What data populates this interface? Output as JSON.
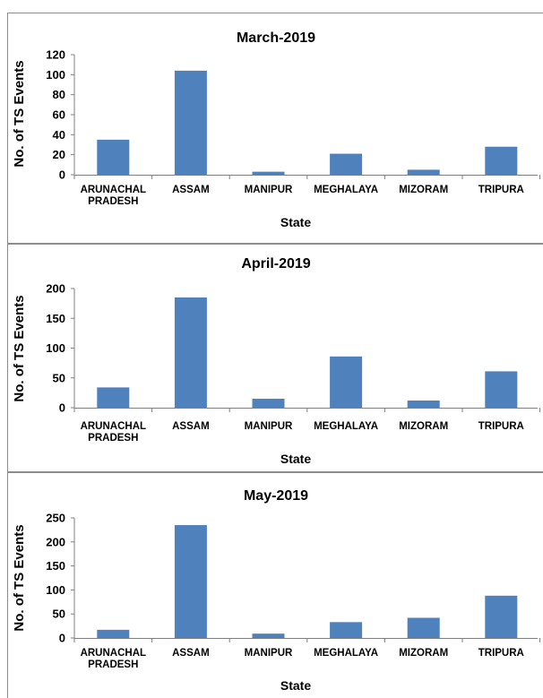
{
  "figure": {
    "colors": {
      "bar": "#4f81bd",
      "axis": "#7f7f7f",
      "frame": "#8c8c8c"
    }
  },
  "chart_data": [
    {
      "type": "bar",
      "title": "March-2019",
      "xlabel": "State",
      "ylabel": "No. of TS Events",
      "categories": [
        [
          "ARUNACHAL",
          "PRADESH"
        ],
        [
          "ASSAM"
        ],
        [
          "MANIPUR"
        ],
        [
          "MEGHALAYA"
        ],
        [
          "MIZORAM"
        ],
        [
          "TRIPURA"
        ]
      ],
      "values": [
        35,
        104,
        3,
        21,
        5,
        28
      ],
      "ylim": [
        0,
        120
      ],
      "yticks": [
        "0",
        "20",
        "40",
        "60",
        "80",
        "100",
        "120"
      ],
      "ytick_values": [
        0,
        20,
        40,
        60,
        80,
        100,
        120
      ],
      "grid": false,
      "legend": "none"
    },
    {
      "type": "bar",
      "title": "April-2019",
      "xlabel": "State",
      "ylabel": "No. of TS Events",
      "categories": [
        [
          "ARUNACHAL",
          "PRADESH"
        ],
        [
          "ASSAM"
        ],
        [
          "MANIPUR"
        ],
        [
          "MEGHALAYA"
        ],
        [
          "MIZORAM"
        ],
        [
          "TRIPURA"
        ]
      ],
      "values": [
        34,
        185,
        15,
        86,
        12,
        61
      ],
      "ylim": [
        0,
        200
      ],
      "yticks": [
        "0",
        "50",
        "100",
        "150",
        "200"
      ],
      "ytick_values": [
        0,
        50,
        100,
        150,
        200
      ],
      "grid": false,
      "legend": "none"
    },
    {
      "type": "bar",
      "title": "May-2019",
      "xlabel": "State",
      "ylabel": "No. of TS Events",
      "categories": [
        [
          "ARUNACHAL",
          "PRADESH"
        ],
        [
          "ASSAM"
        ],
        [
          "MANIPUR"
        ],
        [
          "MEGHALAYA"
        ],
        [
          "MIZORAM"
        ],
        [
          "TRIPURA"
        ]
      ],
      "values": [
        17,
        235,
        9,
        33,
        42,
        88
      ],
      "ylim": [
        0,
        250
      ],
      "yticks": [
        "0",
        "50",
        "100",
        "150",
        "200",
        "250"
      ],
      "ytick_values": [
        0,
        50,
        100,
        150,
        200,
        250
      ],
      "grid": false,
      "legend": "none"
    }
  ]
}
